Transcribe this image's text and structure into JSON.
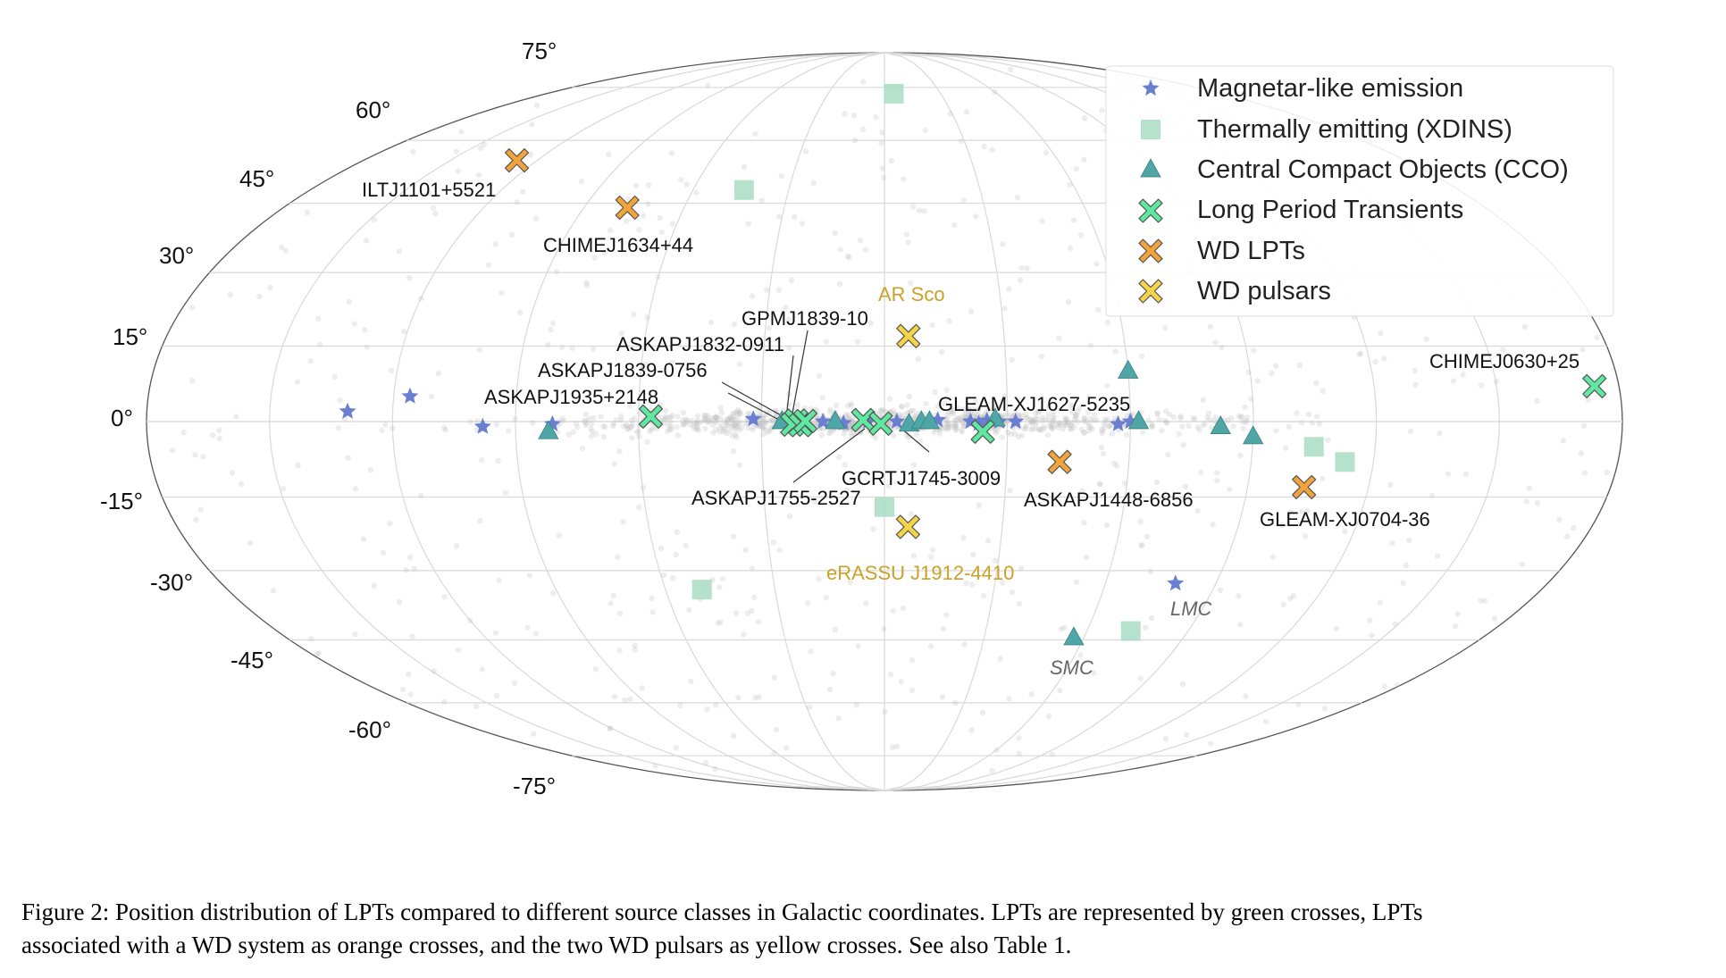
{
  "caption": {
    "line1": "Figure 2: Position distribution of LPTs compared to different source classes in Galactic coordinates. LPTs are represented by green crosses, LPTs",
    "line2": "associated with a WD system as orange crosses, and the two WD pulsars as yellow crosses. See also Table 1."
  },
  "colors": {
    "magnetar": "#6b7fd1",
    "xdins": "#a8dcc4",
    "cco": "#4fa6a6",
    "lpt": "#5ee8a0",
    "wd_lpt": "#f2a33a",
    "wd_pulsar": "#f5d547",
    "grid": "#d9d9d9",
    "background_dots": "#bdbdbd",
    "gold_label": "#c9a227"
  },
  "chart_data": {
    "type": "scatter",
    "projection": "mollweide",
    "coordinates": "Galactic",
    "xlim": [
      180,
      -180
    ],
    "ylim": [
      -90,
      90
    ],
    "grid": true,
    "legend_position": "top-right",
    "latitude_tick_labels": [
      "75°",
      "60°",
      "45°",
      "30°",
      "15°",
      "0°",
      "-15°",
      "-30°",
      "-45°",
      "-60°",
      "-75°"
    ],
    "latitude_tick_values": [
      75,
      60,
      45,
      30,
      15,
      0,
      -15,
      -30,
      -45,
      -60,
      -75
    ],
    "legend": [
      {
        "key": "magnetar",
        "label": "Magnetar-like emission",
        "marker": "star"
      },
      {
        "key": "xdins",
        "label": "Thermally emitting (XDINS)",
        "marker": "square"
      },
      {
        "key": "cco",
        "label": "Central Compact Objects (CCO)",
        "marker": "triangle"
      },
      {
        "key": "lpt",
        "label": "Long Period Transients",
        "marker": "x"
      },
      {
        "key": "wd_lpt",
        "label": "WD LPTs",
        "marker": "x"
      },
      {
        "key": "wd_pulsar",
        "label": "WD pulsars",
        "marker": "x"
      }
    ],
    "series": [
      {
        "key": "magnetar",
        "points": [
          {
            "l": 131,
            "b": 2
          },
          {
            "l": 116,
            "b": 5
          },
          {
            "l": 98,
            "b": -1
          },
          {
            "l": 81,
            "b": -0.5
          },
          {
            "l": 32,
            "b": 0.5
          },
          {
            "l": 22,
            "b": 0
          },
          {
            "l": 15,
            "b": 0
          },
          {
            "l": 10,
            "b": -0.3
          },
          {
            "l": 4,
            "b": 0
          },
          {
            "l": -3,
            "b": 0
          },
          {
            "l": -13,
            "b": 0.3
          },
          {
            "l": -21,
            "b": 0
          },
          {
            "l": -23,
            "b": -0.4
          },
          {
            "l": -25,
            "b": 0.2
          },
          {
            "l": -28,
            "b": 0
          },
          {
            "l": -32,
            "b": 0
          },
          {
            "l": -57,
            "b": -0.5
          },
          {
            "l": -60,
            "b": 0
          },
          {
            "l": -79,
            "b": -32.7
          }
        ]
      },
      {
        "key": "xdins",
        "points": [
          {
            "l": -5,
            "b": 73
          },
          {
            "l": 44,
            "b": 48
          },
          {
            "l": 0,
            "b": -17
          },
          {
            "l": 50,
            "b": -34
          },
          {
            "l": -105,
            "b": -5
          },
          {
            "l": -113,
            "b": -8
          },
          {
            "l": -73,
            "b": -43
          }
        ]
      },
      {
        "key": "cco",
        "points": [
          {
            "l": 82,
            "b": -2
          },
          {
            "l": 25,
            "b": 0
          },
          {
            "l": 20,
            "b": 0
          },
          {
            "l": 12,
            "b": 0
          },
          {
            "l": -6,
            "b": -0.5
          },
          {
            "l": -9,
            "b": 0
          },
          {
            "l": -11,
            "b": 0
          },
          {
            "l": -27,
            "b": 0.5
          },
          {
            "l": -60,
            "b": 10
          },
          {
            "l": -62,
            "b": 0
          },
          {
            "l": -82,
            "b": -1
          },
          {
            "l": -90,
            "b": -3
          },
          {
            "l": -57,
            "b": -44.5
          }
        ]
      },
      {
        "key": "lpt",
        "points": [
          {
            "l": 57,
            "b": 1
          },
          {
            "l": 21.5,
            "b": 0.2
          },
          {
            "l": 22.5,
            "b": -0.6
          },
          {
            "l": 20.5,
            "b": -0.7
          },
          {
            "l": 19.3,
            "b": 0.1
          },
          {
            "l": 5.2,
            "b": 0.3
          },
          {
            "l": 0.9,
            "b": -0.4
          },
          {
            "l": -24,
            "b": -2
          },
          {
            "l": -174,
            "b": 7
          }
        ]
      },
      {
        "key": "wd_lpt",
        "points": [
          {
            "l": 127,
            "b": 55
          },
          {
            "l": 77,
            "b": 44
          },
          {
            "l": -43,
            "b": -8
          },
          {
            "l": -104,
            "b": -13
          }
        ]
      },
      {
        "key": "wd_pulsar",
        "points": [
          {
            "l": -6,
            "b": 17
          },
          {
            "l": -6,
            "b": -21
          }
        ]
      }
    ],
    "annotations": [
      {
        "text": "ILTJ1101+5521",
        "style": "normal"
      },
      {
        "text": "CHIMEJ1634+44",
        "style": "normal"
      },
      {
        "text": "AR Sco",
        "style": "gold"
      },
      {
        "text": "GPMJ1839-10",
        "style": "normal"
      },
      {
        "text": "ASKAPJ1832-0911",
        "style": "normal"
      },
      {
        "text": "ASKAPJ1839-0756",
        "style": "normal"
      },
      {
        "text": "ASKAPJ1935+2148",
        "style": "normal"
      },
      {
        "text": "GLEAM-XJ1627-5235",
        "style": "normal"
      },
      {
        "text": "CHIMEJ0630+25",
        "style": "normal"
      },
      {
        "text": "GCRTJ1745-3009",
        "style": "normal"
      },
      {
        "text": "ASKAPJ1755-2527",
        "style": "normal"
      },
      {
        "text": "ASKAPJ1448-6856",
        "style": "normal"
      },
      {
        "text": "GLEAM-XJ0704-36",
        "style": "normal"
      },
      {
        "text": "eRASSU J1912-4410",
        "style": "gold"
      },
      {
        "text": "LMC",
        "style": "cloud"
      },
      {
        "text": "SMC",
        "style": "cloud"
      }
    ]
  }
}
